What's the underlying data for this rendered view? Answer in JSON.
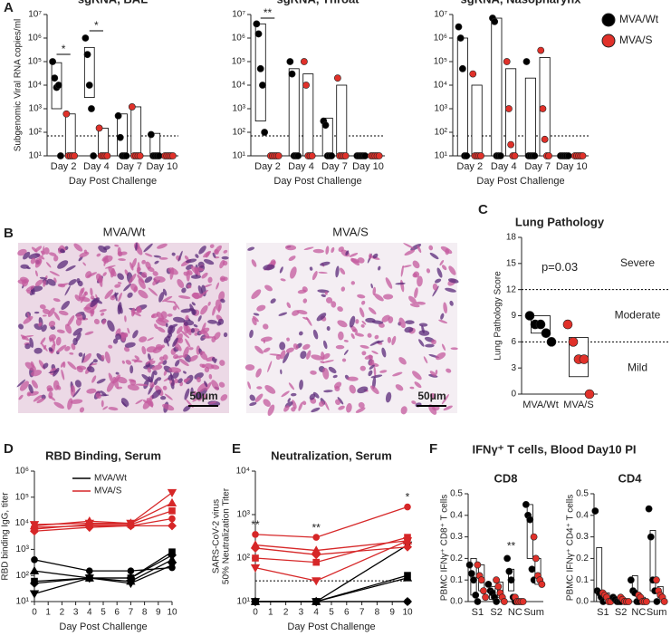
{
  "panel_labels": [
    "A",
    "B",
    "C",
    "D",
    "E",
    "F"
  ],
  "figure_b": {
    "titles": [
      "MVA/Wt",
      "MVA/S"
    ],
    "scale_bars": [
      "50μm",
      "50μm"
    ]
  },
  "panel_f_title": "IFNγ⁺ T cells, Blood Day10 PI",
  "chart_data": [
    {
      "type": "dotbox",
      "title": "sgRNA, BAL",
      "ylabel": [
        "Subgenomic Viral RNA copies/ml"
      ],
      "xlabel": "Day Post Challenge",
      "log_y": true,
      "ylim": [
        10,
        10000000
      ],
      "yticks": [
        {
          "value": 10,
          "label": "10¹"
        },
        {
          "value": 100,
          "label": "10²"
        },
        {
          "value": 1000,
          "label": "10³"
        },
        {
          "value": 10000,
          "label": "10⁴"
        },
        {
          "value": 100000,
          "label": "10⁵"
        },
        {
          "value": 1000000,
          "label": "10⁶"
        },
        {
          "value": 10000000,
          "label": "10⁷"
        }
      ],
      "lod": 70,
      "categories": [
        "Day 2",
        "Day 4",
        "Day 7",
        "Day 10"
      ],
      "series": [
        {
          "name": "MVA/Wt",
          "color": "#000000",
          "values": [
            [
              100000,
              20000,
              8000,
              10000,
              10
            ],
            [
              1000000,
              200000,
              10000,
              1000,
              10
            ],
            [
              500,
              60,
              10,
              10,
              10
            ],
            [
              80,
              10,
              10,
              10,
              10
            ]
          ],
          "box_low": [
            1000,
            3000,
            10,
            10
          ],
          "box_high": [
            90000,
            400000,
            600,
            90
          ]
        },
        {
          "name": "MVA/S",
          "color": "#e0312a",
          "values": [
            [
              600,
              10,
              10,
              10,
              10
            ],
            [
              150,
              10,
              10,
              10,
              10
            ],
            [
              1200,
              10,
              10,
              10,
              10
            ],
            [
              10,
              10,
              10,
              10,
              10
            ]
          ],
          "box_low": [
            10,
            10,
            10,
            10
          ],
          "box_high": [
            600,
            150,
            1200,
            10
          ]
        }
      ],
      "significance": [
        {
          "label": "*",
          "category": 0,
          "bracket": true
        },
        {
          "label": "*",
          "category": 1,
          "bracket": true
        }
      ]
    },
    {
      "type": "dotbox",
      "title": "sgRNA, Throat",
      "xlabel": "Day Post Challenge",
      "log_y": true,
      "ylim": [
        10,
        10000000
      ],
      "yticks": [
        {
          "value": 10,
          "label": "10¹"
        },
        {
          "value": 100,
          "label": "10²"
        },
        {
          "value": 1000,
          "label": "10³"
        },
        {
          "value": 10000,
          "label": "10⁴"
        },
        {
          "value": 100000,
          "label": "10⁵"
        },
        {
          "value": 1000000,
          "label": "10⁶"
        },
        {
          "value": 10000000,
          "label": "10⁷"
        }
      ],
      "lod": 70,
      "categories": [
        "Day 2",
        "Day 4",
        "Day 7",
        "Day 10"
      ],
      "series": [
        {
          "name": "MVA/Wt",
          "color": "#000000",
          "values": [
            [
              4000000,
              1500000,
              50000,
              10000,
              100
            ],
            [
              100000,
              30000,
              10,
              10,
              10
            ],
            [
              300,
              200,
              10,
              10,
              10
            ],
            [
              10,
              10,
              10,
              10,
              10
            ]
          ],
          "box_low": [
            300,
            10,
            10,
            10
          ],
          "box_high": [
            4000000,
            50000,
            400,
            10
          ]
        },
        {
          "name": "MVA/S",
          "color": "#e0312a",
          "values": [
            [
              10,
              10,
              10,
              10,
              10
            ],
            [
              100000,
              10000,
              10,
              10,
              10
            ],
            [
              20000,
              10,
              10,
              10,
              10
            ],
            [
              10,
              10,
              10,
              10,
              10
            ]
          ],
          "box_low": [
            10,
            10,
            10,
            10
          ],
          "box_high": [
            10,
            30000,
            10000,
            10
          ]
        }
      ],
      "significance": [
        {
          "label": "**",
          "category": 0,
          "bracket": true
        }
      ]
    },
    {
      "type": "dotbox",
      "title": "sgRNA, Nasopharynx",
      "xlabel": "Day Post Challenge",
      "log_y": true,
      "ylim": [
        10,
        10000000
      ],
      "yticks": [
        {
          "value": 10,
          "label": "10¹"
        },
        {
          "value": 100,
          "label": "10²"
        },
        {
          "value": 1000,
          "label": "10³"
        },
        {
          "value": 10000,
          "label": "10⁴"
        },
        {
          "value": 100000,
          "label": "10⁵"
        },
        {
          "value": 1000000,
          "label": "10⁶"
        },
        {
          "value": 10000000,
          "label": "10⁷"
        }
      ],
      "lod": 70,
      "categories": [
        "Day 2",
        "Day 4",
        "Day 7",
        "Day 10"
      ],
      "series": [
        {
          "name": "MVA/Wt",
          "color": "#000000",
          "values": [
            [
              3000000,
              1000000,
              50000,
              10,
              10
            ],
            [
              7000000,
              5000000,
              10,
              10,
              10
            ],
            [
              100000,
              10,
              10,
              10,
              10
            ],
            [
              10,
              10,
              10,
              10,
              10
            ]
          ],
          "box_low": [
            10,
            10,
            10,
            10
          ],
          "box_high": [
            1000000,
            7000000,
            20000,
            10
          ]
        },
        {
          "name": "MVA/S",
          "color": "#e0312a",
          "values": [
            [
              30000,
              10,
              10,
              10,
              10
            ],
            [
              100000,
              1000,
              30,
              10,
              10
            ],
            [
              300000,
              1000,
              50,
              10,
              10
            ],
            [
              10,
              10,
              10,
              10,
              10
            ]
          ],
          "box_low": [
            10,
            10,
            10,
            10
          ],
          "box_high": [
            10000,
            50000,
            150000,
            10
          ]
        }
      ]
    },
    {
      "type": "dotbox",
      "title": "Lung Pathology",
      "ylabel": [
        "Lung Pathology Score"
      ],
      "ylim": [
        0,
        18
      ],
      "yticks": [
        0,
        3,
        6,
        9,
        12,
        15,
        18
      ],
      "categories": [
        "MVA/Wt",
        "MVA/S"
      ],
      "series": [
        {
          "colors": [
            "#000000",
            "#e0312a"
          ],
          "values": [
            [
              9,
              8,
              8,
              7,
              6
            ],
            [
              8,
              6,
              4,
              4,
              0
            ]
          ],
          "box_low": [
            7,
            2
          ],
          "box_high": [
            9,
            6.5
          ]
        }
      ],
      "thresholds": [
        6,
        12
      ],
      "zone_labels": [
        "Mild",
        "Moderate",
        "Severe"
      ],
      "annotation": "p=0.03"
    },
    {
      "type": "line",
      "title": "RBD Binding, Serum",
      "ylabel": [
        "RBD binding IgG, titer"
      ],
      "xlabel": "Day Post Challenge",
      "log_y": true,
      "ylim": [
        10,
        1000000
      ],
      "yticks": [
        {
          "value": 10,
          "label": "10¹"
        },
        {
          "value": 100,
          "label": "10²"
        },
        {
          "value": 1000,
          "label": "10³"
        },
        {
          "value": 10000,
          "label": "10⁴"
        },
        {
          "value": 100000,
          "label": "10⁵"
        },
        {
          "value": 1000000,
          "label": "10⁶"
        }
      ],
      "xlim": [
        0,
        10
      ],
      "xticks": [
        0,
        1,
        2,
        3,
        4,
        5,
        6,
        7,
        8,
        9,
        10
      ],
      "x": [
        0,
        4,
        7,
        10
      ],
      "legend": true,
      "groups": [
        {
          "name": "MVA/Wt",
          "color": "#000000",
          "lines": [
            {
              "marker": "circle",
              "values": [
                400,
                150,
                150,
                200
              ]
            },
            {
              "marker": "square",
              "values": [
                60,
                80,
                80,
                800
              ]
            },
            {
              "marker": "triangle",
              "values": [
                150,
                80,
                60,
                400
              ]
            },
            {
              "marker": "triangle-down",
              "values": [
                20,
                80,
                50,
                250
              ]
            },
            {
              "marker": "diamond",
              "values": [
                50,
                80,
                80,
                600
              ]
            }
          ]
        },
        {
          "name": "MVA/S",
          "color": "#d62728",
          "lines": [
            {
              "marker": "circle",
              "values": [
                7000,
                8000,
                8000,
                15000
              ]
            },
            {
              "marker": "square",
              "values": [
                6000,
                9000,
                9000,
                30000
              ]
            },
            {
              "marker": "triangle",
              "values": [
                8000,
                12000,
                10000,
                60000
              ]
            },
            {
              "marker": "triangle-down",
              "values": [
                9000,
                10000,
                10000,
                150000
              ]
            },
            {
              "marker": "diamond",
              "values": [
                5000,
                7000,
                8000,
                8000
              ]
            }
          ]
        }
      ]
    },
    {
      "type": "line",
      "title": "Neutralization, Serum",
      "ylabel": [
        "SARS-CoV-2 virus",
        "50% Neutralization Titer"
      ],
      "xlabel": "Day Post Challenge",
      "log_y": true,
      "ylim": [
        10,
        10000
      ],
      "yticks": [
        {
          "value": 10,
          "label": "10¹"
        },
        {
          "value": 100,
          "label": "10²"
        },
        {
          "value": 1000,
          "label": "10³"
        },
        {
          "value": 10000,
          "label": "10⁴"
        }
      ],
      "xlim": [
        0,
        10
      ],
      "xticks": [
        0,
        1,
        2,
        3,
        4,
        5,
        6,
        7,
        8,
        9,
        10
      ],
      "x": [
        0,
        4,
        10
      ],
      "lod": 30,
      "groups": [
        {
          "color": "#000000",
          "lines": [
            {
              "marker": "circle",
              "values": [
                10,
                10,
                10
              ]
            },
            {
              "marker": "square",
              "values": [
                10,
                10,
                40
              ]
            },
            {
              "marker": "triangle",
              "values": [
                10,
                10,
                35
              ]
            },
            {
              "marker": "triangle-down",
              "values": [
                10,
                10,
                200
              ]
            },
            {
              "marker": "diamond",
              "values": [
                10,
                10,
                10
              ]
            }
          ]
        },
        {
          "color": "#d62728",
          "lines": [
            {
              "marker": "circle",
              "values": [
                350,
                300,
                1500
              ]
            },
            {
              "marker": "square",
              "values": [
                100,
                80,
                300
              ]
            },
            {
              "marker": "triangle",
              "values": [
                200,
                150,
                250
              ]
            },
            {
              "marker": "triangle-down",
              "values": [
                60,
                30,
                250
              ]
            },
            {
              "marker": "diamond",
              "values": [
                170,
                120,
                180
              ]
            }
          ]
        }
      ],
      "significance": [
        {
          "label": "**",
          "x": 0
        },
        {
          "label": "**",
          "x": 4
        },
        {
          "label": "*",
          "x": 10
        }
      ]
    },
    {
      "type": "dotbox",
      "title": "CD8",
      "ylabel": [
        "PBMC IFNγ⁺ CD8⁺ T cells"
      ],
      "ylim": [
        0,
        0.5
      ],
      "yticks": [
        {
          "value": 0,
          "label": "0.0"
        },
        0.1,
        0.2,
        0.3,
        0.4,
        0.5
      ],
      "categories": [
        "S1",
        "S2",
        "NC",
        "Sum"
      ],
      "series": [
        {
          "name": "MVA/Wt",
          "color": "#000000",
          "values": [
            [
              0.17,
              0.13,
              0.1,
              0.03,
              0.0
            ],
            [
              0.08,
              0.05,
              0.04,
              0.02,
              0.0
            ],
            [
              0.2,
              0.14,
              0.1,
              0.02,
              0.0
            ],
            [
              0.45,
              0.4,
              0.38,
              0.15,
              0.1
            ]
          ],
          "box_low": [
            0.03,
            0.01,
            0.05,
            0.2
          ],
          "box_high": [
            0.2,
            0.07,
            0.15,
            0.45
          ]
        },
        {
          "name": "MVA/S",
          "color": "#e0312a",
          "values": [
            [
              0.17,
              0.12,
              0.1,
              0.05,
              0.02
            ],
            [
              0.1,
              0.07,
              0.04,
              0.02,
              0.0
            ],
            [
              0.02,
              0.0,
              0.0,
              0.0,
              0.0
            ],
            [
              0.3,
              0.2,
              0.12,
              0.1,
              0.08
            ]
          ],
          "box_low": [
            0.05,
            0.02,
            0.0,
            0.08
          ],
          "box_high": [
            0.17,
            0.09,
            0.01,
            0.2
          ]
        }
      ],
      "significance": [
        {
          "label": "**",
          "category": 2,
          "bracket": false
        }
      ]
    },
    {
      "type": "dotbox",
      "title": "CD4",
      "ylabel": [
        "PBMC IFNγ⁺ CD4⁺ T cells"
      ],
      "ylim": [
        0,
        0.5
      ],
      "yticks": [
        {
          "value": 0,
          "label": "0.0"
        },
        0.1,
        0.2,
        0.3,
        0.4,
        0.5
      ],
      "categories": [
        "S1",
        "S2",
        "NC",
        "Sum"
      ],
      "series": [
        {
          "name": "MVA/Wt",
          "color": "#000000",
          "values": [
            [
              0.42,
              0.05,
              0.04,
              0.02,
              0.0
            ],
            [
              0.02,
              0.01,
              0.0,
              0.0,
              0.0
            ],
            [
              0.1,
              0.05,
              0.04,
              0.0,
              0.0
            ],
            [
              0.43,
              0.3,
              0.1,
              0.05,
              0.0
            ]
          ],
          "box_low": [
            0.0,
            0.0,
            0.03,
            0.05
          ],
          "box_high": [
            0.25,
            0.02,
            0.12,
            0.33
          ]
        },
        {
          "name": "MVA/S",
          "color": "#e0312a",
          "values": [
            [
              0.04,
              0.03,
              0.02,
              0.0,
              0.0
            ],
            [
              0.02,
              0.01,
              0.0,
              0.0,
              0.0
            ],
            [
              0.03,
              0.02,
              0.0,
              0.0,
              0.0
            ],
            [
              0.1,
              0.05,
              0.03,
              0.02,
              0.0
            ]
          ],
          "box_low": [
            0.0,
            0.0,
            0.0,
            0.02
          ],
          "box_high": [
            0.04,
            0.01,
            0.02,
            0.07
          ]
        }
      ]
    }
  ]
}
